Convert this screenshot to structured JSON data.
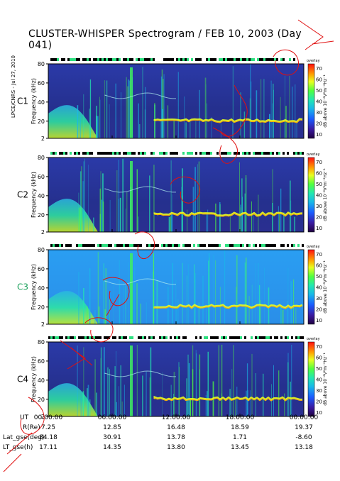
{
  "title": "CLUSTER-WHISPER Spectrogram / FEB 10, 2003 (Day 041)",
  "credit": "LPCE/CNRS - Jul 27, 2010",
  "colorbar": {
    "ticks": [
      "70",
      "60",
      "50",
      "40",
      "30",
      "20",
      "10"
    ],
    "label": "dB above 10⁻⁸V²m⁻²Hz⁻¹",
    "top_label": "overlay"
  },
  "colors": {
    "c3_label": "#1aa05a"
  },
  "chart_data": [
    {
      "type": "heatmap",
      "spacecraft": "C1",
      "ylabel": "Frequency (kHz)",
      "yticks": [
        "80",
        "60",
        "40",
        "20",
        "2"
      ],
      "ylim": [
        2,
        80
      ],
      "xlim": [
        "00:00:00",
        "00:00:00"
      ],
      "background": "dark"
    },
    {
      "type": "heatmap",
      "spacecraft": "C2",
      "ylabel": "Frequency (kHz)",
      "yticks": [
        "80",
        "60",
        "40",
        "20",
        "2"
      ],
      "ylim": [
        2,
        80
      ],
      "xlim": [
        "00:00:00",
        "00:00:00"
      ],
      "background": "dark"
    },
    {
      "type": "heatmap",
      "spacecraft": "C3",
      "ylabel": "Frequency (kHz)",
      "yticks": [
        "80",
        "60",
        "40",
        "20",
        "2"
      ],
      "ylim": [
        2,
        80
      ],
      "xlim": [
        "00:00:00",
        "00:00:00"
      ],
      "background": "light"
    },
    {
      "type": "heatmap",
      "spacecraft": "C4",
      "ylabel": "Frequency (kHz)",
      "yticks": [
        "80",
        "60",
        "40",
        "20",
        "2"
      ],
      "ylim": [
        2,
        80
      ],
      "xlim": [
        "00:00:00",
        "00:00:00"
      ],
      "background": "dark"
    }
  ],
  "orbit_table": {
    "rows": [
      {
        "label": "UT",
        "values": [
          "00:00:00",
          "06:00:00",
          "12:00:00",
          "18:00:00",
          "00:00:00"
        ]
      },
      {
        "label": "R(Re)",
        "values": [
          "7.25",
          "12.85",
          "16.48",
          "18.59",
          "19.37"
        ]
      },
      {
        "label": "Lat_gse(deg)",
        "values": [
          "84.18",
          "30.91",
          "13.78",
          "1.71",
          "-8.60"
        ]
      },
      {
        "label": "LT_gse(h)",
        "values": [
          "17.11",
          "14.35",
          "13.80",
          "13.45",
          "13.18"
        ]
      }
    ]
  }
}
